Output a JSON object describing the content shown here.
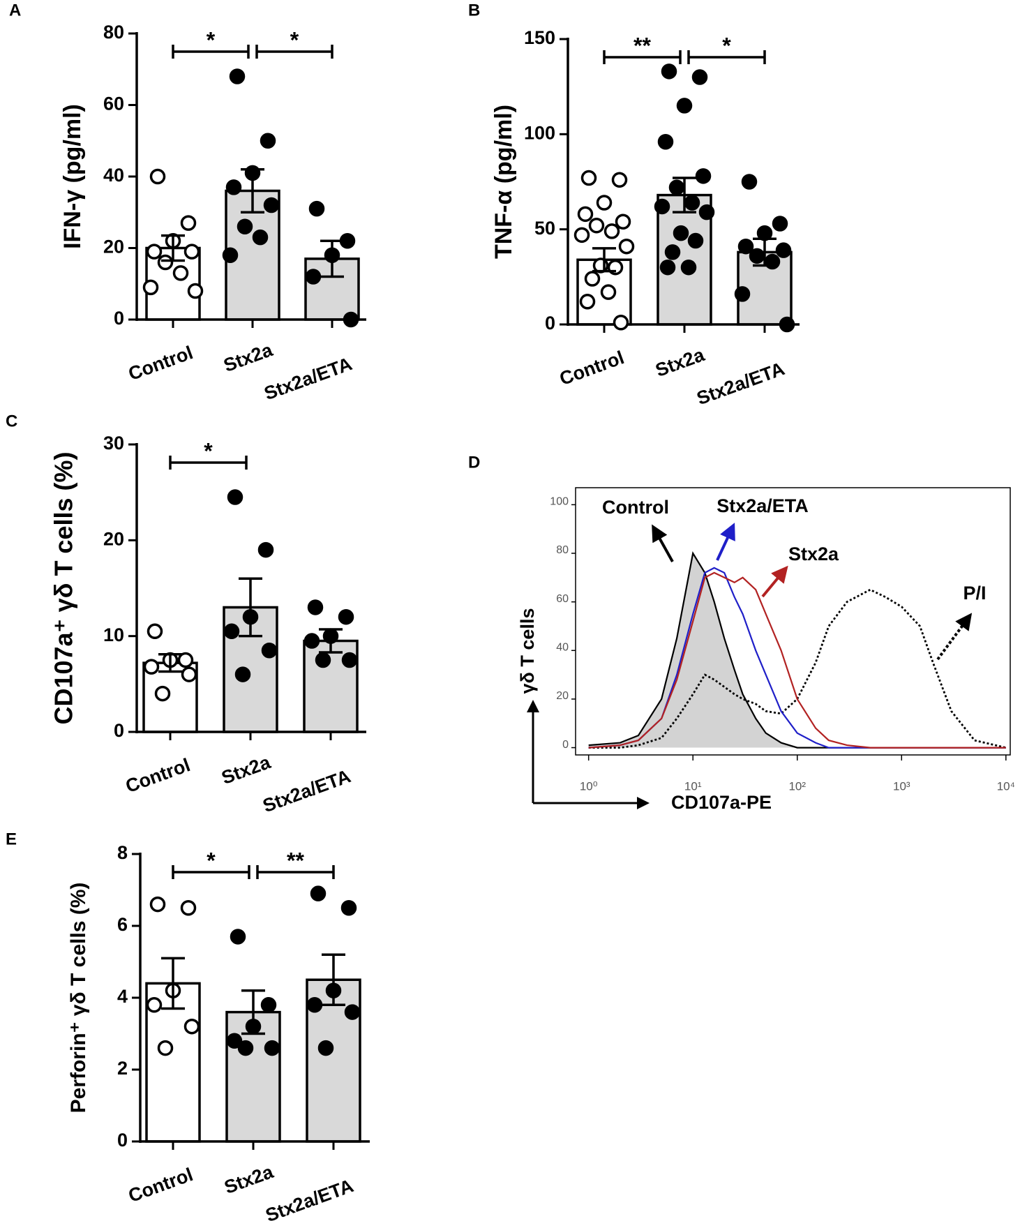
{
  "chart_data": [
    {
      "type": "bar",
      "panel_label": "A",
      "ylabel": "IFN-γ (pg/ml)",
      "categories": [
        "Control",
        "Stx2a",
        "Stx2a/ETA"
      ],
      "values": [
        20,
        36,
        17
      ],
      "errors": [
        3.5,
        6,
        5
      ],
      "points": [
        [
          40,
          27,
          22,
          19,
          19,
          16,
          13,
          9,
          8
        ],
        [
          68,
          50,
          41,
          37,
          32,
          26,
          23,
          18
        ],
        [
          31,
          22,
          18,
          12,
          0
        ]
      ],
      "bar_colors": [
        "#ffffff",
        "#d9d9d9",
        "#d9d9d9"
      ],
      "point_fills": [
        "#ffffff",
        "#000000",
        "#000000"
      ],
      "ylim": [
        0,
        80
      ],
      "yticks": [
        0,
        20,
        40,
        60,
        80
      ],
      "annotations": [
        {
          "label": "*",
          "from": 0,
          "to": 1
        },
        {
          "label": "*",
          "from": 1,
          "to": 2
        }
      ]
    },
    {
      "type": "bar",
      "panel_label": "B",
      "ylabel": "TNF-α (pg/ml)",
      "categories": [
        "Control",
        "Stx2a",
        "Stx2a/ETA"
      ],
      "values": [
        34,
        68,
        38
      ],
      "errors": [
        6,
        9,
        7
      ],
      "points": [
        [
          77,
          76,
          64,
          58,
          54,
          52,
          49,
          47,
          41,
          31,
          30,
          24,
          17,
          12,
          1
        ],
        [
          133,
          130,
          115,
          96,
          78,
          72,
          64,
          62,
          59,
          48,
          44,
          38,
          30,
          30
        ],
        [
          75,
          53,
          48,
          41,
          39,
          36,
          33,
          16,
          0
        ]
      ],
      "bar_colors": [
        "#ffffff",
        "#d9d9d9",
        "#d9d9d9"
      ],
      "point_fills": [
        "#ffffff",
        "#000000",
        "#000000"
      ],
      "ylim": [
        0,
        150
      ],
      "yticks": [
        0,
        50,
        100,
        150
      ],
      "annotations": [
        {
          "label": "**",
          "from": 0,
          "to": 1
        },
        {
          "label": "*",
          "from": 1,
          "to": 2
        }
      ]
    },
    {
      "type": "bar",
      "panel_label": "C",
      "ylabel": "CD107a⁺ γδ T cells (%)",
      "categories": [
        "Control",
        "Stx2a",
        "Stx2a/ETA"
      ],
      "values": [
        7.2,
        13,
        9.5
      ],
      "errors": [
        0.9,
        3,
        1.2
      ],
      "points": [
        [
          10.5,
          7.5,
          7.5,
          6.8,
          6,
          4
        ],
        [
          24.5,
          19,
          12,
          10.5,
          8.5,
          6
        ],
        [
          13,
          12,
          10,
          9.5,
          7.5,
          7.5
        ]
      ],
      "bar_colors": [
        "#ffffff",
        "#d9d9d9",
        "#d9d9d9"
      ],
      "point_fills": [
        "#ffffff",
        "#000000",
        "#000000"
      ],
      "ylim": [
        0,
        30
      ],
      "yticks": [
        0,
        10,
        20,
        30
      ],
      "annotations": [
        {
          "label": "*",
          "from": 0,
          "to": 1
        }
      ]
    },
    {
      "type": "line",
      "panel_label": "D",
      "ylabel": "γδ T cells",
      "xlabel": "CD107a-PE",
      "log_x": true,
      "x": [
        1,
        2,
        3,
        5,
        7,
        10,
        13,
        16,
        20,
        25,
        30,
        40,
        50,
        70,
        100,
        150,
        200,
        300,
        500,
        700,
        1000,
        1500,
        2000,
        3000,
        5000,
        10000
      ],
      "series": [
        {
          "name": "Control",
          "color": "#000000",
          "fill": "#d3d3d3",
          "values": [
            1,
            2,
            5,
            20,
            45,
            80,
            72,
            60,
            45,
            32,
            22,
            12,
            6,
            2,
            0,
            0,
            0,
            0,
            0,
            0,
            0,
            0,
            0,
            0,
            0,
            0
          ]
        },
        {
          "name": "Stx2a/ETA",
          "color": "#1f1fc8",
          "values": [
            0,
            1,
            3,
            12,
            30,
            55,
            72,
            74,
            72,
            62,
            55,
            40,
            30,
            15,
            6,
            2,
            0,
            0,
            0,
            0,
            0,
            0,
            0,
            0,
            0,
            0
          ]
        },
        {
          "name": "Stx2a",
          "color": "#b22222",
          "values": [
            0,
            1,
            3,
            12,
            28,
            52,
            70,
            72,
            70,
            68,
            70,
            65,
            55,
            40,
            20,
            8,
            3,
            1,
            0,
            0,
            0,
            0,
            0,
            0,
            0,
            0
          ]
        },
        {
          "name": "P/I",
          "color": "#000000",
          "linestyle": "dotted",
          "values": [
            0,
            0,
            1,
            4,
            12,
            22,
            30,
            28,
            25,
            22,
            20,
            18,
            15,
            14,
            20,
            35,
            50,
            60,
            65,
            62,
            58,
            50,
            35,
            15,
            3,
            0
          ]
        }
      ],
      "xlim": [
        0.75,
        11000
      ],
      "xticks": [
        {
          "value": 1,
          "label": "10⁰"
        },
        {
          "value": 10,
          "label": "10¹"
        },
        {
          "value": 100,
          "label": "10²"
        },
        {
          "value": 1000,
          "label": "10³"
        },
        {
          "value": 10000,
          "label": "10⁴"
        }
      ],
      "ylim": [
        -3,
        107
      ],
      "yticks": [
        0,
        20,
        40,
        60,
        80,
        100
      ]
    },
    {
      "type": "bar",
      "panel_label": "E",
      "ylabel": "Perforin⁺ γδ T cells (%)",
      "categories": [
        "Control",
        "Stx2a",
        "Stx2a/ETA"
      ],
      "values": [
        4.4,
        3.6,
        4.5
      ],
      "errors": [
        0.7,
        0.6,
        0.7
      ],
      "points": [
        [
          6.6,
          6.5,
          4.2,
          3.8,
          3.2,
          2.6
        ],
        [
          5.7,
          3.8,
          3.2,
          2.8,
          2.6,
          2.6
        ],
        [
          6.9,
          6.5,
          4.2,
          3.8,
          3.6,
          2.6
        ]
      ],
      "bar_colors": [
        "#ffffff",
        "#d9d9d9",
        "#d9d9d9"
      ],
      "point_fills": [
        "#ffffff",
        "#000000",
        "#000000"
      ],
      "ylim": [
        0,
        8
      ],
      "yticks": [
        0,
        2,
        4,
        6,
        8
      ],
      "annotations": [
        {
          "label": "*",
          "from": 0,
          "to": 1
        },
        {
          "label": "**",
          "from": 1,
          "to": 2
        }
      ]
    }
  ]
}
